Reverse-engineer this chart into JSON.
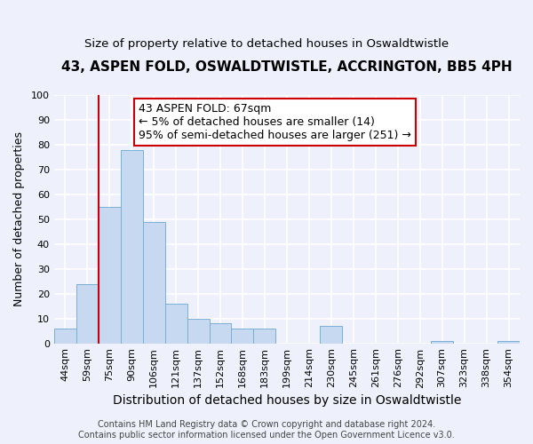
{
  "title": "43, ASPEN FOLD, OSWALDTWISTLE, ACCRINGTON, BB5 4PH",
  "subtitle": "Size of property relative to detached houses in Oswaldtwistle",
  "xlabel": "Distribution of detached houses by size in Oswaldtwistle",
  "ylabel": "Number of detached properties",
  "categories": [
    "44sqm",
    "59sqm",
    "75sqm",
    "90sqm",
    "106sqm",
    "121sqm",
    "137sqm",
    "152sqm",
    "168sqm",
    "183sqm",
    "199sqm",
    "214sqm",
    "230sqm",
    "245sqm",
    "261sqm",
    "276sqm",
    "292sqm",
    "307sqm",
    "323sqm",
    "338sqm",
    "354sqm"
  ],
  "values": [
    6,
    24,
    55,
    78,
    49,
    16,
    10,
    8,
    6,
    6,
    0,
    0,
    7,
    0,
    0,
    0,
    0,
    1,
    0,
    0,
    1
  ],
  "bar_color": "#c6d9f0",
  "bar_edge_color": "#7bafd4",
  "vline_x_index": 2,
  "vline_color": "#cc0000",
  "annotation_line1": "43 ASPEN FOLD: 67sqm",
  "annotation_line2": "← 5% of detached houses are smaller (14)",
  "annotation_line3": "95% of semi-detached houses are larger (251) →",
  "annotation_box_color": "#ffffff",
  "annotation_box_edge_color": "#cc0000",
  "ylim": [
    0,
    100
  ],
  "yticks": [
    0,
    10,
    20,
    30,
    40,
    50,
    60,
    70,
    80,
    90,
    100
  ],
  "footer_line1": "Contains HM Land Registry data © Crown copyright and database right 2024.",
  "footer_line2": "Contains public sector information licensed under the Open Government Licence v3.0.",
  "background_color": "#eef1fb",
  "grid_color": "#ffffff",
  "title_fontsize": 11,
  "subtitle_fontsize": 9.5,
  "xlabel_fontsize": 10,
  "ylabel_fontsize": 9,
  "tick_fontsize": 8,
  "annotation_fontsize": 9,
  "footer_fontsize": 7
}
